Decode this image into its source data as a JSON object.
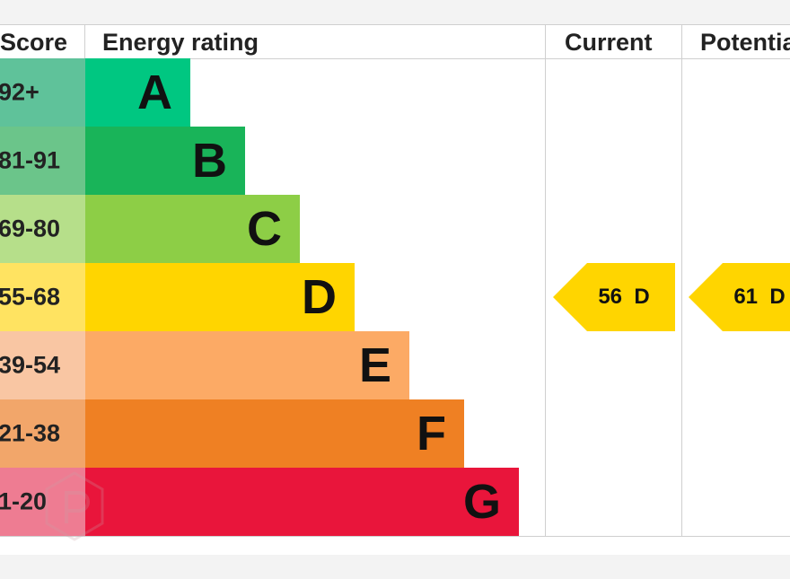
{
  "chart_data": {
    "type": "table",
    "headers": {
      "score": "Score",
      "rating": "Energy rating",
      "current": "Current",
      "potential": "Potentia"
    },
    "bands": [
      {
        "score": "92+",
        "letter": "A",
        "color": "#00c781",
        "score_bg": "#5fc29a"
      },
      {
        "score": "81-91",
        "letter": "B",
        "color": "#19b459",
        "score_bg": "#6bc58a"
      },
      {
        "score": "69-80",
        "letter": "C",
        "color": "#8dce46",
        "score_bg": "#b6df8a"
      },
      {
        "score": "55-68",
        "letter": "D",
        "color": "#ffd500",
        "score_bg": "#ffe361"
      },
      {
        "score": "39-54",
        "letter": "E",
        "color": "#fcaa65",
        "score_bg": "#f9c6a3"
      },
      {
        "score": "21-38",
        "letter": "F",
        "color": "#ef8023",
        "score_bg": "#f2a66a"
      },
      {
        "score": "1-20",
        "letter": "G",
        "color": "#e9153b",
        "score_bg": "#ee7c92"
      }
    ],
    "current": {
      "value": 56,
      "letter": "D",
      "label": "56  D",
      "color": "#ffd500"
    },
    "potential": {
      "value": 61,
      "letter": "D",
      "label": "61  D",
      "color": "#ffd500"
    }
  }
}
